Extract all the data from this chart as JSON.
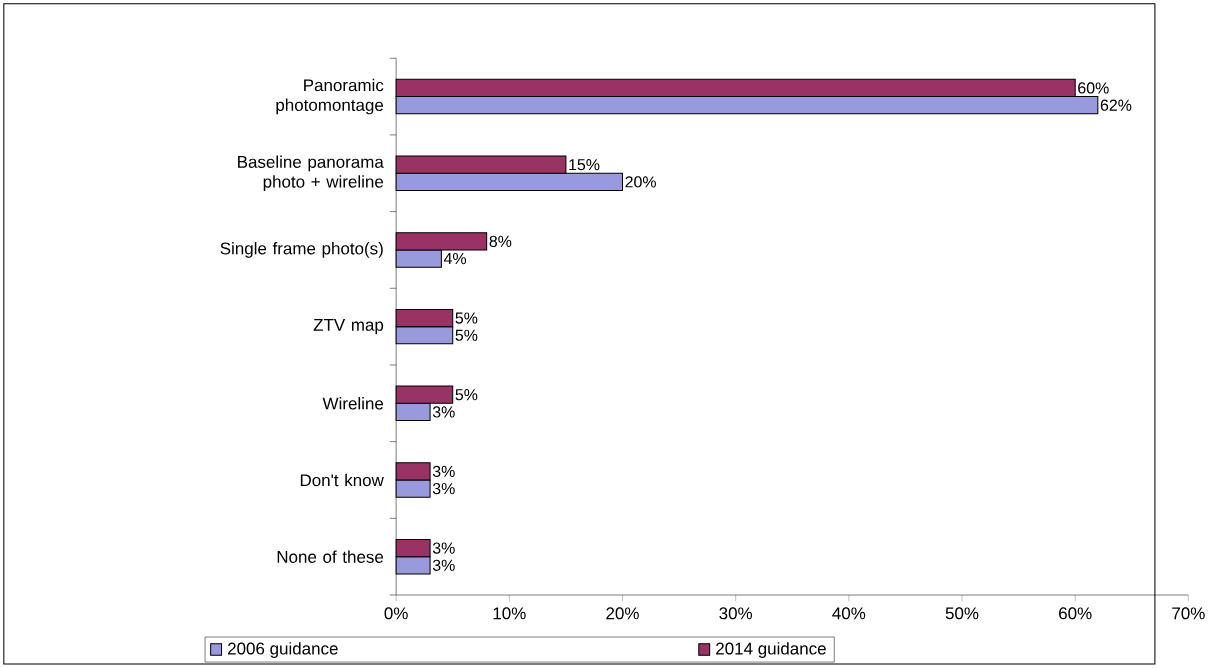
{
  "chart_data": {
    "type": "bar",
    "orientation": "horizontal",
    "categories": [
      "Panoramic photomontage",
      "Baseline panorama photo + wireline",
      "Single frame photo(s)",
      "ZTV map",
      "Wireline",
      "Don't know",
      "None of these"
    ],
    "series": [
      {
        "name": "2006 guidance",
        "color": "#9999dd",
        "values": [
          62,
          20,
          4,
          5,
          3,
          3,
          3
        ],
        "value_labels": [
          "62%",
          "20%",
          "4%",
          "5%",
          "3%",
          "3%",
          "3%"
        ]
      },
      {
        "name": "2014 guidance",
        "color": "#993366",
        "values": [
          60,
          15,
          8,
          5,
          5,
          3,
          3
        ],
        "value_labels": [
          "60%",
          "15%",
          "8%",
          "5%",
          "5%",
          "3%",
          "3%"
        ]
      }
    ],
    "xlim": [
      0,
      70
    ],
    "xticks": [
      {
        "value": 0,
        "label": "0%"
      },
      {
        "value": 10,
        "label": "10%"
      },
      {
        "value": 20,
        "label": "20%"
      },
      {
        "value": 30,
        "label": "30%"
      },
      {
        "value": 40,
        "label": "40%"
      },
      {
        "value": 50,
        "label": "50%"
      },
      {
        "value": 60,
        "label": "60%"
      },
      {
        "value": 70,
        "label": "70%"
      }
    ],
    "legend": "bottom"
  }
}
